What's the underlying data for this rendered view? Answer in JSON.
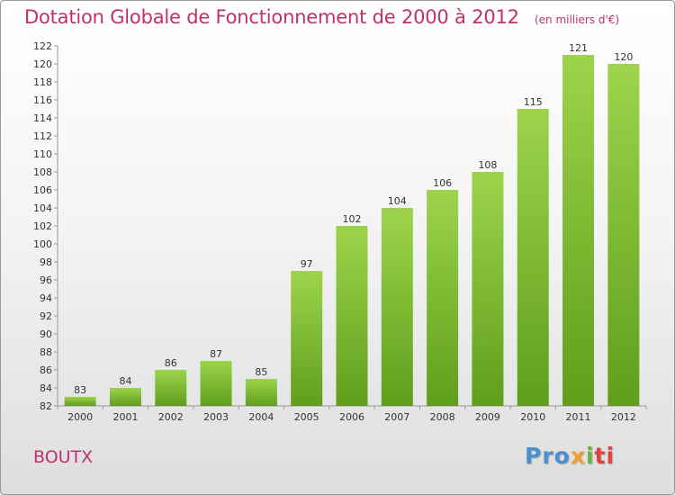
{
  "title": "Dotation Globale de Fonctionnement de 2000 à 2012",
  "unit": "(en milliers d'€)",
  "place": "BOUTX",
  "logo": {
    "p1": "Pro",
    "p2": "x",
    "p3": "i",
    "p4": "ti"
  },
  "colors": {
    "title": "#c0306e",
    "bar_top": "#9dd44c",
    "bar_bottom": "#5f9e1b"
  },
  "chart_data": {
    "type": "bar",
    "categories": [
      "2000",
      "2001",
      "2002",
      "2003",
      "2004",
      "2005",
      "2006",
      "2007",
      "2008",
      "2009",
      "2010",
      "2011",
      "2012"
    ],
    "values": [
      83,
      84,
      86,
      87,
      85,
      97,
      102,
      104,
      106,
      108,
      115,
      121,
      120
    ],
    "title": "Dotation Globale de Fonctionnement de 2000 à 2012",
    "xlabel": "",
    "ylabel": "",
    "ylim": [
      82,
      122
    ],
    "yticks": [
      82,
      84,
      86,
      88,
      90,
      92,
      94,
      96,
      98,
      100,
      102,
      104,
      106,
      108,
      110,
      112,
      114,
      116,
      118,
      120,
      122
    ],
    "grid": false,
    "data_labels": true
  }
}
